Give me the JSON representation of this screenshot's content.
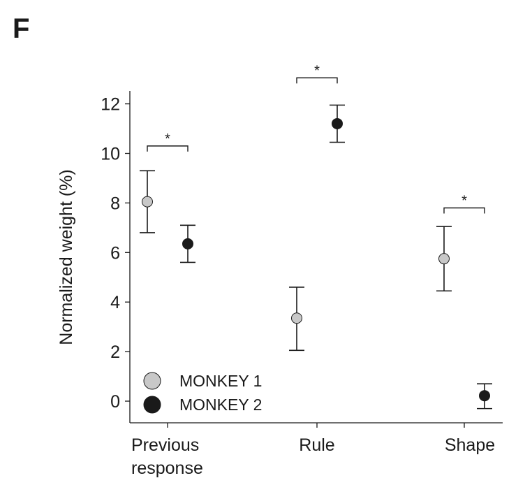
{
  "panel_label": "F",
  "chart_data": {
    "type": "scatter",
    "categories": [
      "Previous\nresponse",
      "Rule",
      "Shape"
    ],
    "ylabel": "Normalized weight (%)",
    "xlabel": "",
    "ylim": [
      -0.9,
      12.6
    ],
    "yticks": [
      0,
      2,
      4,
      6,
      8,
      10,
      12
    ],
    "grid": false,
    "legend_position": "bottom-left",
    "series": [
      {
        "name": "MONKEY 1",
        "color": "#c8c8c8",
        "values": [
          8.05,
          3.35,
          5.75
        ],
        "error_low": [
          6.8,
          2.05,
          4.45
        ],
        "error_high": [
          9.3,
          4.6,
          7.05
        ]
      },
      {
        "name": "MONKEY 2",
        "color": "#1a1a1a",
        "values": [
          6.35,
          11.2,
          0.22
        ],
        "error_low": [
          5.6,
          10.45,
          -0.3
        ],
        "error_high": [
          7.1,
          11.95,
          0.7
        ]
      }
    ],
    "significance": [
      {
        "category": 0,
        "label": "*",
        "level": 10.3
      },
      {
        "category": 1,
        "label": "*",
        "level": 13.05
      },
      {
        "category": 2,
        "label": "*",
        "level": 7.8
      }
    ]
  }
}
